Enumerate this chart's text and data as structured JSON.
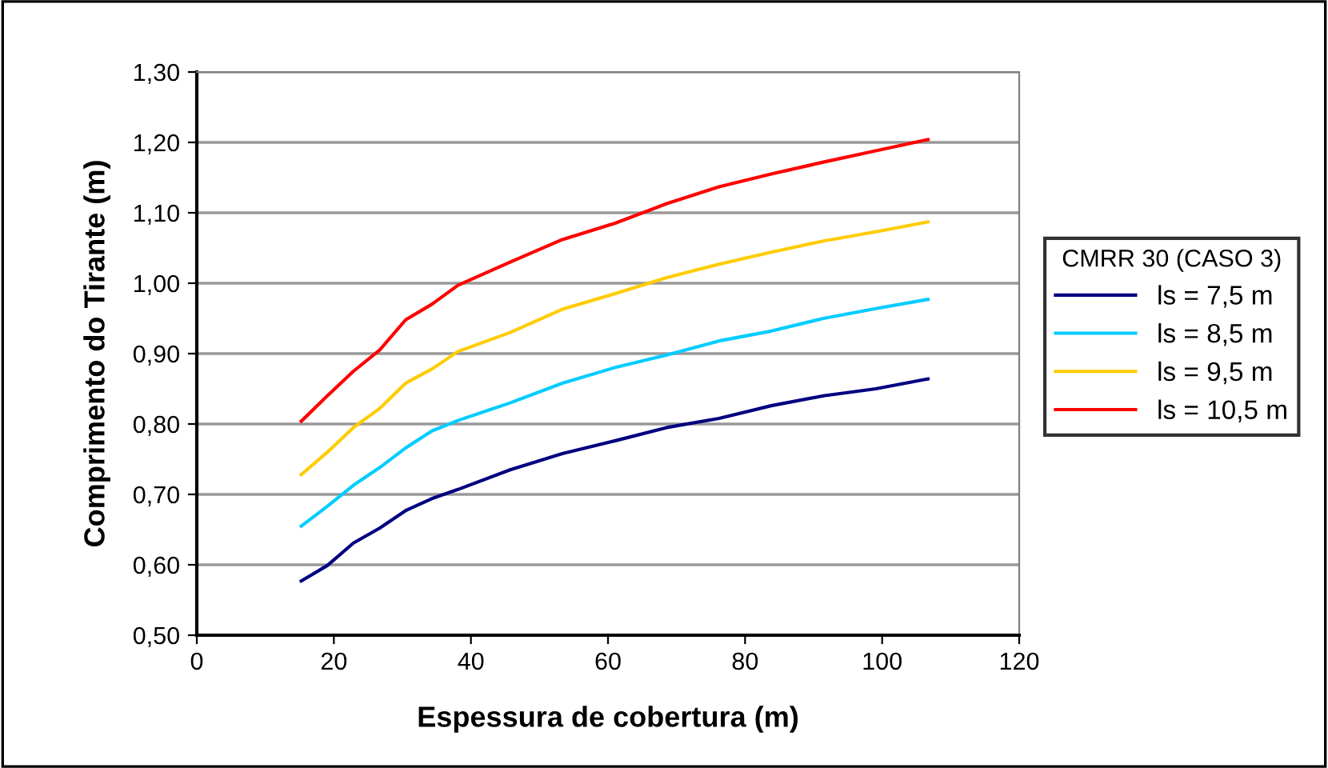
{
  "chart_data": {
    "type": "line",
    "xlabel": "Espessura de cobertura (m)",
    "ylabel": "Comprimento do Tirante (m)",
    "legend_title": "CMRR 30 (CASO 3)",
    "x": [
      15.24,
      19.05,
      22.86,
      26.67,
      30.48,
      34.29,
      38.1,
      45.72,
      53.34,
      60.96,
      68.58,
      76.2,
      83.82,
      91.44,
      99.06,
      106.68
    ],
    "series": [
      {
        "name": "ls = 7,5 m",
        "color": "#000080",
        "values": [
          0.577,
          0.599,
          0.631,
          0.652,
          0.677,
          0.694,
          0.707,
          0.735,
          0.758,
          0.776,
          0.795,
          0.808,
          0.826,
          0.84,
          0.85,
          0.864
        ]
      },
      {
        "name": "ls = 8,5 m",
        "color": "#00ccff",
        "values": [
          0.655,
          0.683,
          0.713,
          0.738,
          0.766,
          0.79,
          0.805,
          0.83,
          0.858,
          0.88,
          0.898,
          0.918,
          0.932,
          0.95,
          0.964,
          0.977
        ]
      },
      {
        "name": "ls = 9,5 m",
        "color": "#ffcc00",
        "values": [
          0.728,
          0.76,
          0.795,
          0.822,
          0.858,
          0.878,
          0.903,
          0.93,
          0.963,
          0.985,
          1.008,
          1.027,
          1.044,
          1.06,
          1.073,
          1.087
        ]
      },
      {
        "name": "ls = 10,5 m",
        "color": "#ff0000",
        "values": [
          0.804,
          0.84,
          0.875,
          0.905,
          0.948,
          0.97,
          0.997,
          1.03,
          1.062,
          1.085,
          1.113,
          1.137,
          1.155,
          1.172,
          1.188,
          1.204
        ]
      }
    ],
    "xlim": [
      0,
      120
    ],
    "xticks": [
      0,
      20,
      40,
      60,
      80,
      100,
      120
    ],
    "ylim": [
      0.5,
      1.3
    ],
    "yticks": [
      {
        "value": 0.5,
        "label": "0,50"
      },
      {
        "value": 0.6,
        "label": "0,60"
      },
      {
        "value": 0.7,
        "label": "0,70"
      },
      {
        "value": 0.8,
        "label": "0,80"
      },
      {
        "value": 0.9,
        "label": "0,90"
      },
      {
        "value": 1.0,
        "label": "1,00"
      },
      {
        "value": 1.1,
        "label": "1,10"
      },
      {
        "value": 1.2,
        "label": "1,20"
      },
      {
        "value": 1.3,
        "label": "1,30"
      }
    ],
    "grid": "y",
    "legend": "right",
    "marker": "none",
    "line_style": "solid"
  }
}
